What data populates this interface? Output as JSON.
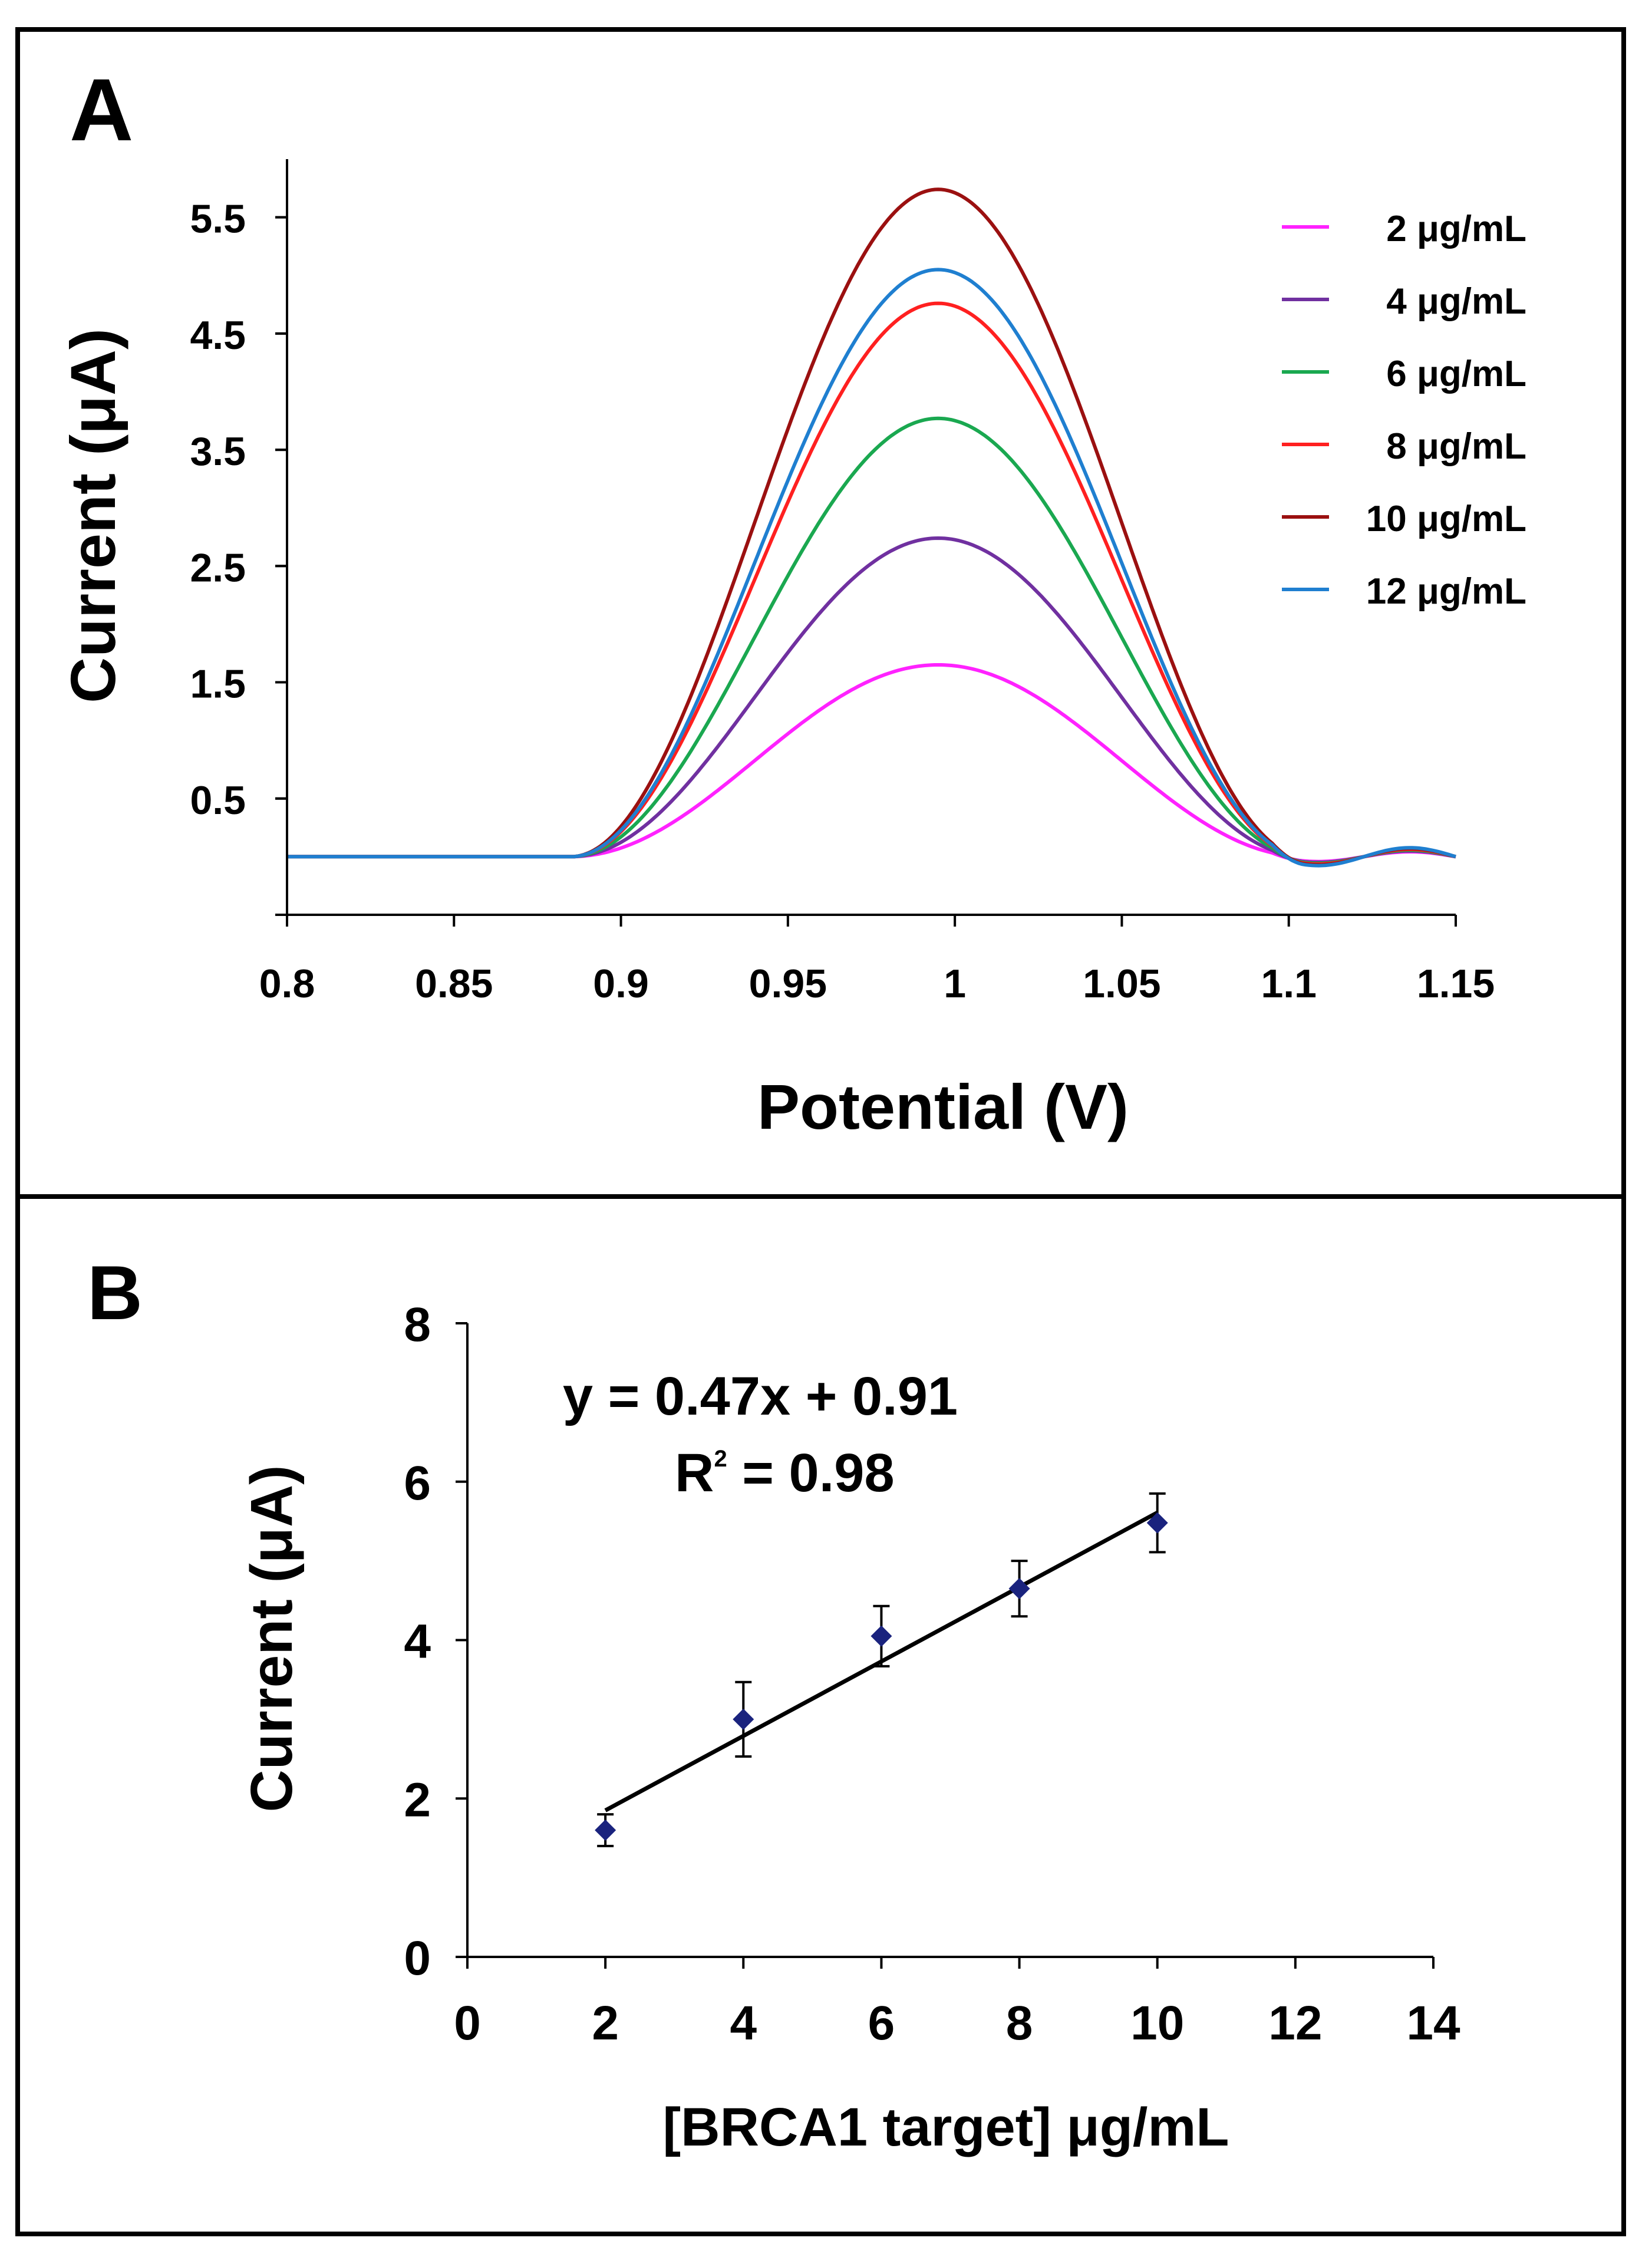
{
  "panels": {
    "a": {
      "label": "A"
    },
    "b": {
      "label": "B"
    }
  },
  "chart_data": [
    {
      "id": "A",
      "type": "line",
      "title": "",
      "xlabel": "Potential (V)",
      "ylabel": "Current (μA)",
      "xlim": [
        0.8,
        1.15
      ],
      "ylim": [
        -0.5,
        6.0
      ],
      "xticks": [
        0.8,
        0.85,
        0.9,
        0.95,
        1,
        1.05,
        1.1,
        1.15
      ],
      "xtick_labels": [
        "0.8",
        "0.85",
        "0.9",
        "0.95",
        "1",
        "1.05",
        "1.1",
        "1.15"
      ],
      "yticks": [
        0.5,
        1.5,
        2.5,
        3.5,
        4.5,
        5.5
      ],
      "ytick_labels": [
        "0.5",
        "1.5",
        "2.5",
        "3.5",
        "4.5",
        "5.5"
      ],
      "grid": false,
      "legend": "top-right",
      "peak_potential": 0.995,
      "series": [
        {
          "name": "2 μg/mL",
          "color": "#ff22ff",
          "peak": 1.65
        },
        {
          "name": "4 μg/mL",
          "color": "#7030a0",
          "peak": 2.74
        },
        {
          "name": "6 μg/mL",
          "color": "#1aa850",
          "peak": 3.77
        },
        {
          "name": "8 μg/mL",
          "color": "#ff2020",
          "peak": 4.76
        },
        {
          "name": "10 μg/mL",
          "color": "#9b1010",
          "peak": 5.74
        },
        {
          "name": "12 μg/mL",
          "color": "#1f7fd0",
          "peak": 5.05
        }
      ]
    },
    {
      "id": "B",
      "type": "scatter",
      "title": "",
      "xlabel": "[BRCA1 target] μg/mL",
      "ylabel": "Current (μA)",
      "xlim": [
        0,
        14
      ],
      "ylim": [
        0,
        8
      ],
      "xticks": [
        0,
        2,
        4,
        6,
        8,
        10,
        12,
        14
      ],
      "xtick_labels": [
        "0",
        "2",
        "4",
        "6",
        "8",
        "10",
        "12",
        "14"
      ],
      "yticks": [
        0,
        2,
        4,
        6,
        8
      ],
      "ytick_labels": [
        "0",
        "2",
        "4",
        "6",
        "8"
      ],
      "grid": false,
      "marker_color": "#1a237e",
      "x": [
        2,
        4,
        6,
        8,
        10
      ],
      "y": [
        1.6,
        3.0,
        4.05,
        4.65,
        5.48
      ],
      "error": [
        0.2,
        0.47,
        0.38,
        0.35,
        0.37
      ],
      "fit": {
        "slope": 0.47,
        "intercept": 0.91,
        "x_range": [
          2,
          10
        ]
      },
      "equation": "y = 0.47x + 0.91",
      "r2_label": "R",
      "r2_sup": "2",
      "r2_value": " = 0.98"
    }
  ]
}
